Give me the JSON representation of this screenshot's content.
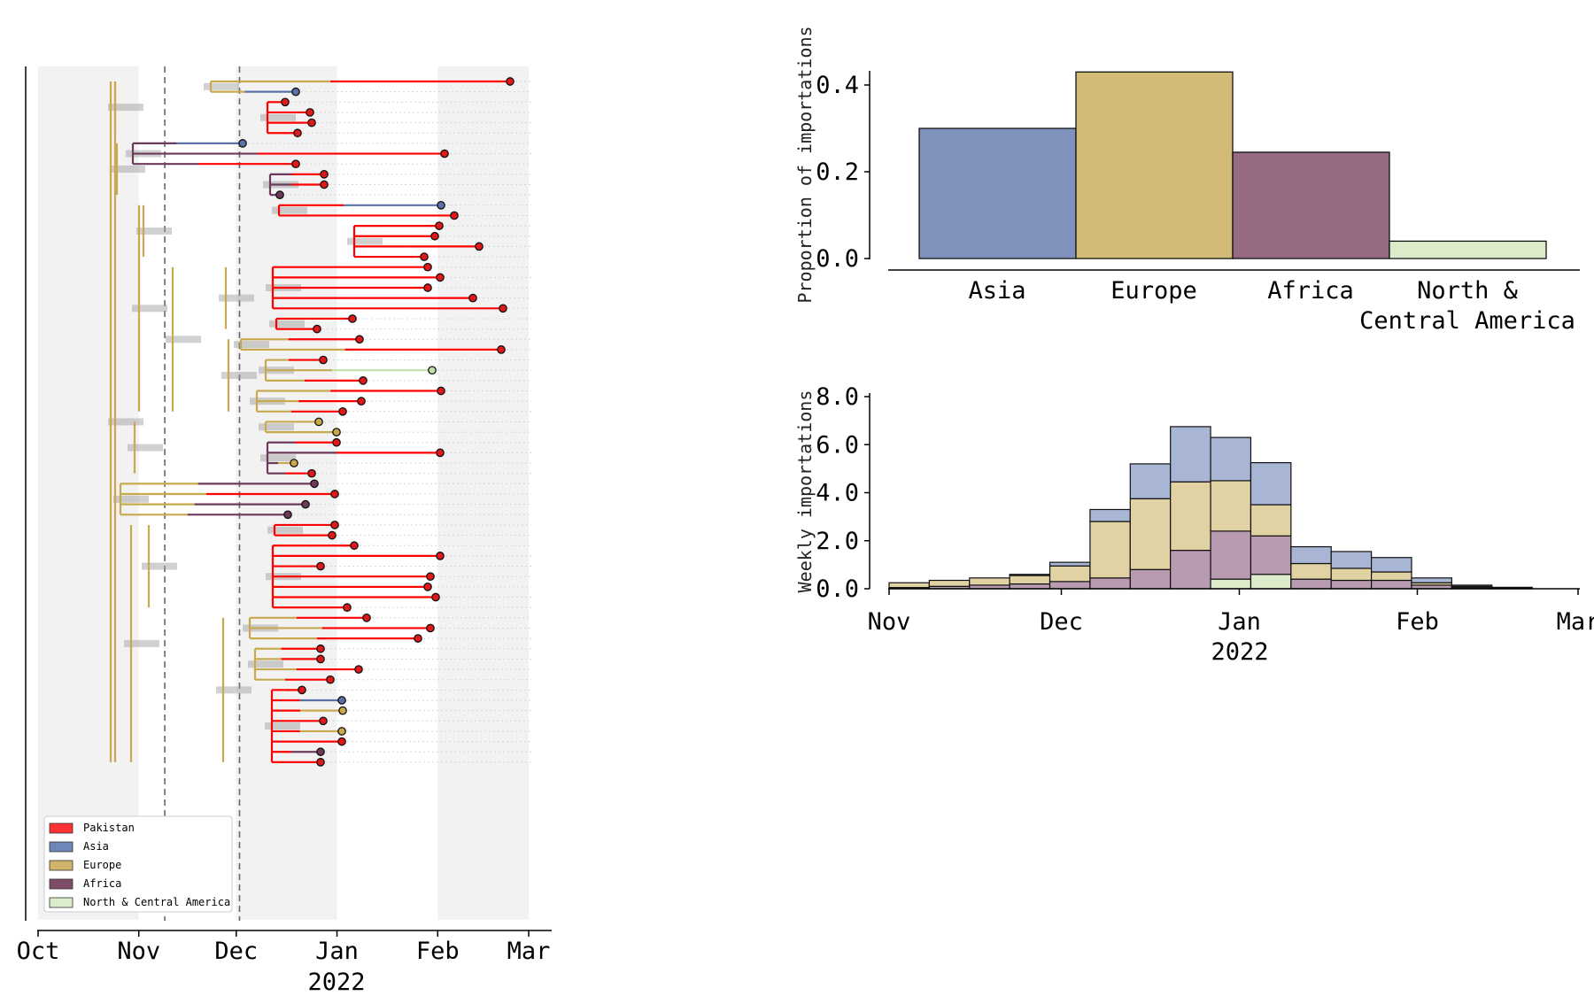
{
  "colors": {
    "Pakistan": "#ff0000",
    "Asia": "#5a72a8",
    "Europe": "#c9a94e",
    "Africa": "#6e3a5a",
    "North & Central America": "#bfe0a8"
  },
  "chart_data": [
    {
      "type": "tree",
      "panel": "time-scaled phylogeny",
      "x_axis": {
        "ticks": [
          "Oct",
          "Nov",
          "Dec",
          "Jan",
          "Feb",
          "Mar"
        ],
        "year_label": "2022",
        "range": [
          "2021-10-01",
          "2022-03-01"
        ]
      },
      "shaded_bands": [
        [
          "2021-10-01",
          "2021-11-01"
        ],
        [
          "2021-12-01",
          "2022-01-01"
        ],
        [
          "2022-02-01",
          "2022-03-01"
        ]
      ],
      "dashed_lines": [
        "2021-11-09",
        "2021-12-02"
      ],
      "legend": {
        "position": "bottom-left",
        "items": [
          {
            "label": "Pakistan",
            "color": "#ff3333"
          },
          {
            "label": "Asia",
            "color": "#6f86b8"
          },
          {
            "label": "Europe",
            "color": "#d1b46c"
          },
          {
            "label": "Africa",
            "color": "#7f4c68"
          },
          {
            "label": "North & Central America",
            "color": "#d9eccb"
          }
        ]
      },
      "tip_count": 67
    },
    {
      "type": "bar",
      "categories": [
        "Asia",
        "Europe",
        "Africa",
        "North &\nCentral America"
      ],
      "category_lines": [
        [
          "Asia"
        ],
        [
          "Europe"
        ],
        [
          "Africa"
        ],
        [
          "North &",
          "Central America"
        ]
      ],
      "values": [
        0.3,
        0.43,
        0.245,
        0.04
      ],
      "colors": [
        "#7f92bb",
        "#d3bb77",
        "#966a80",
        "#dcebc9"
      ],
      "ylabel": "Proportion of importations",
      "yticks": [
        "0.0",
        "0.2",
        "0.4"
      ],
      "ylim": [
        0,
        0.45
      ]
    },
    {
      "type": "bar",
      "stacked": true,
      "x": [
        "2021-11-01",
        "2021-11-08",
        "2021-11-15",
        "2021-11-22",
        "2021-11-29",
        "2021-12-06",
        "2021-12-13",
        "2021-12-20",
        "2021-12-27",
        "2022-01-03",
        "2022-01-10",
        "2022-01-17",
        "2022-01-24",
        "2022-01-31",
        "2022-02-07",
        "2022-02-14"
      ],
      "series": [
        {
          "name": "North & Central America",
          "values": [
            0,
            0,
            0,
            0,
            0,
            0,
            0,
            0,
            0.4,
            0.6,
            0,
            0,
            0,
            0,
            0,
            0
          ]
        },
        {
          "name": "Africa",
          "values": [
            0.05,
            0.1,
            0.15,
            0.2,
            0.3,
            0.45,
            0.8,
            1.6,
            2.0,
            1.6,
            0.4,
            0.35,
            0.35,
            0.15,
            0.05,
            0.02
          ]
        },
        {
          "name": "Europe",
          "values": [
            0.2,
            0.25,
            0.3,
            0.35,
            0.65,
            2.35,
            2.95,
            2.85,
            2.1,
            1.3,
            0.65,
            0.5,
            0.35,
            0.1,
            0.05,
            0.02
          ]
        },
        {
          "name": "Asia",
          "values": [
            0,
            0,
            0,
            0.05,
            0.15,
            0.5,
            1.45,
            2.3,
            1.8,
            1.75,
            0.7,
            0.7,
            0.6,
            0.2,
            0.05,
            0.02
          ]
        }
      ],
      "colors": [
        "#dcebc9",
        "#b89bb0",
        "#e0d2a2",
        "#a8b5d4"
      ],
      "ylabel": "Weekly importations",
      "yticks": [
        "0.0",
        "2.0",
        "4.0",
        "6.0",
        "8.0"
      ],
      "ylim": [
        0,
        8
      ],
      "xticks": [
        "Nov",
        "Dec",
        "Jan",
        "Feb",
        "Mar"
      ],
      "year_label": "2022",
      "xlim": [
        "2021-11-01",
        "2022-03-01"
      ]
    }
  ]
}
